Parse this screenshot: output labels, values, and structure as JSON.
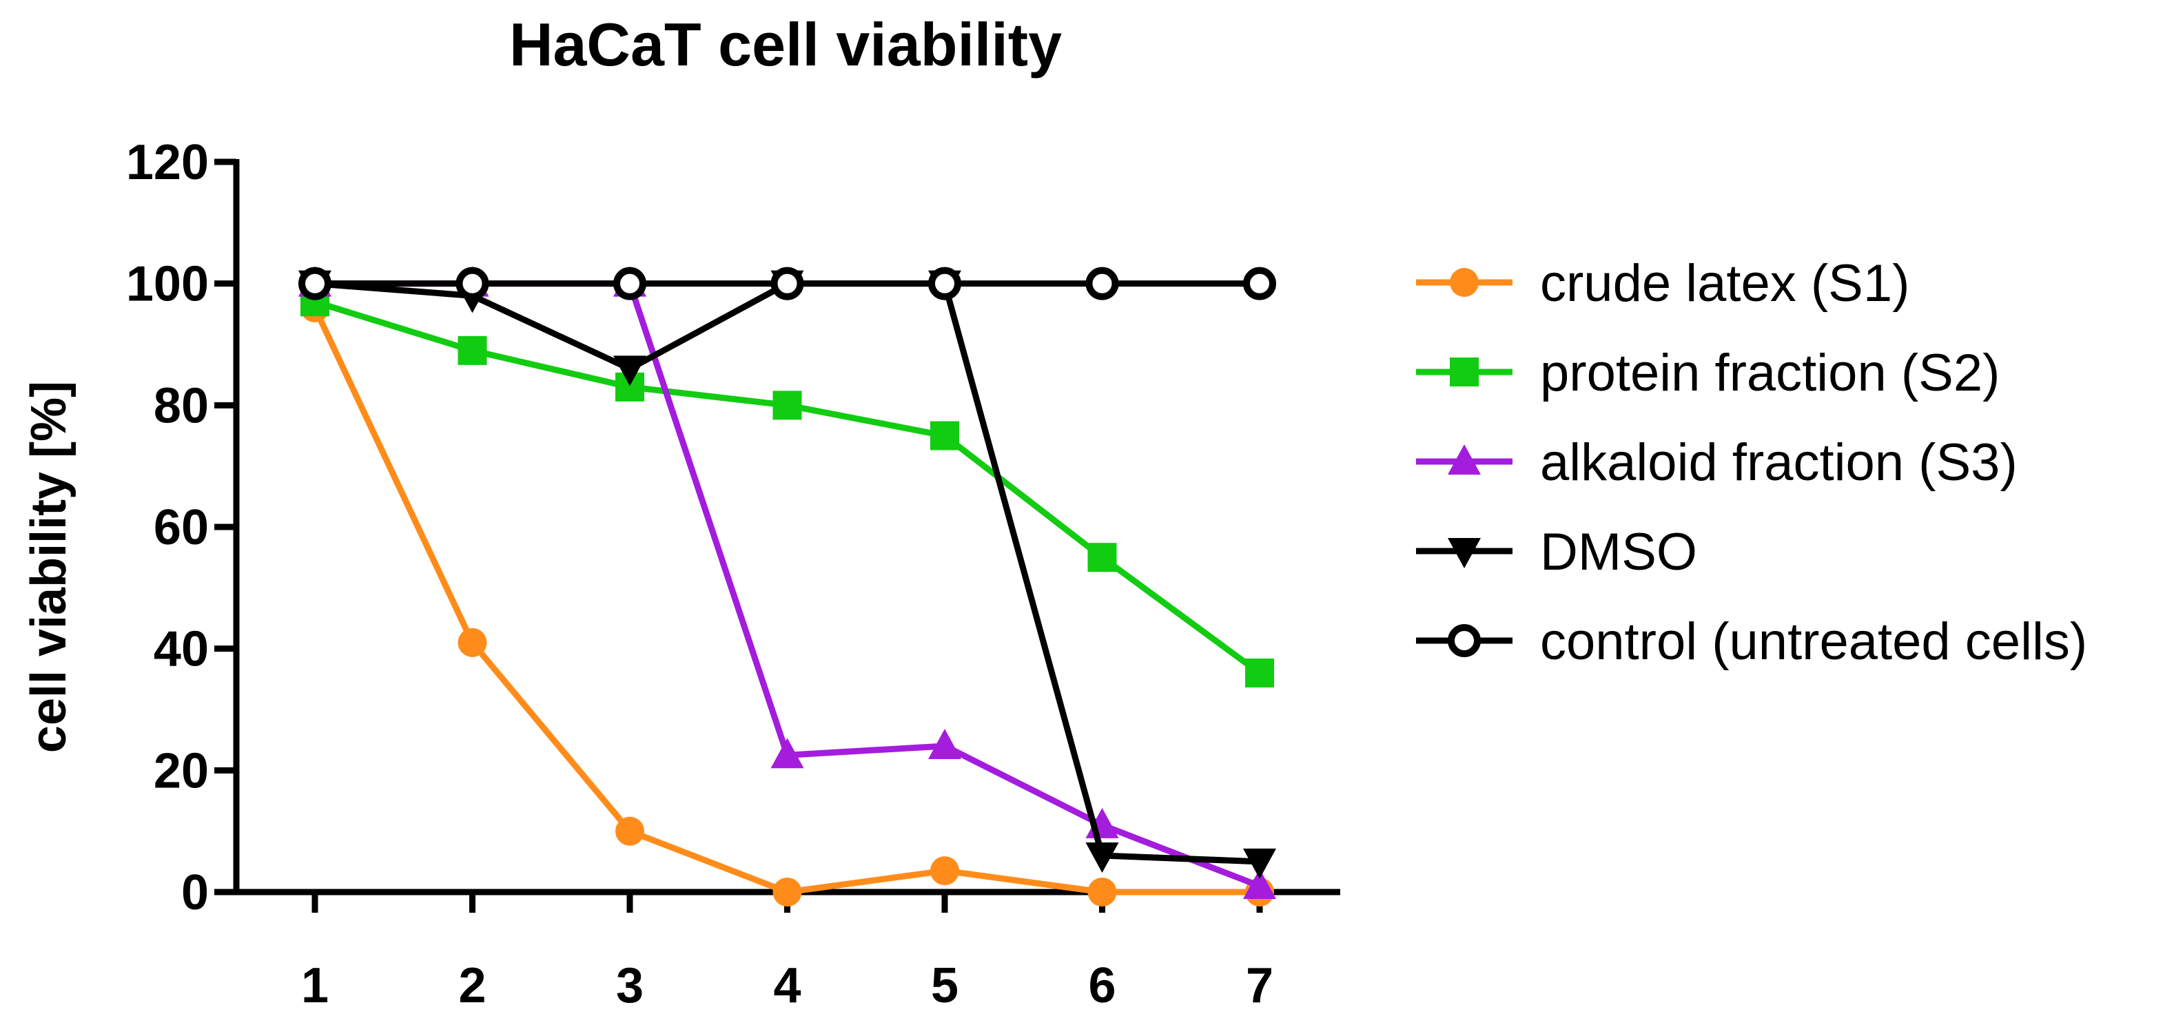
{
  "chart_data": {
    "type": "line",
    "title": "HaCaT cell viability",
    "xlabel": "",
    "ylabel": "cell viability [%]",
    "x": [
      1,
      2,
      3,
      4,
      5,
      6,
      7
    ],
    "xlim": [
      0.5,
      7.5
    ],
    "ylim": [
      0,
      120
    ],
    "yticks": [
      0,
      20,
      40,
      60,
      80,
      100,
      120
    ],
    "grid": false,
    "legend_position": "right",
    "series": [
      {
        "name": "crude latex (S1)",
        "color": "#ff8c1a",
        "marker": "circle",
        "values": [
          96,
          41,
          10,
          0,
          3.5,
          0,
          0
        ]
      },
      {
        "name": "protein fraction (S2)",
        "color": "#11cc11",
        "marker": "square",
        "values": [
          97,
          89,
          83,
          80,
          75,
          55,
          36
        ]
      },
      {
        "name": "alkaloid fraction (S3)",
        "color": "#a41cdc",
        "marker": "triangle-up",
        "values": [
          100,
          100,
          100,
          22.5,
          24,
          11,
          1
        ]
      },
      {
        "name": "DMSO",
        "color": "#000000",
        "marker": "triangle-down",
        "values": [
          100,
          98,
          86,
          100,
          100,
          6,
          5
        ]
      },
      {
        "name": "control (untreated cells)",
        "color": "#000000",
        "marker": "open-circle",
        "values": [
          100,
          100,
          100,
          100,
          100,
          100,
          100
        ]
      }
    ]
  }
}
